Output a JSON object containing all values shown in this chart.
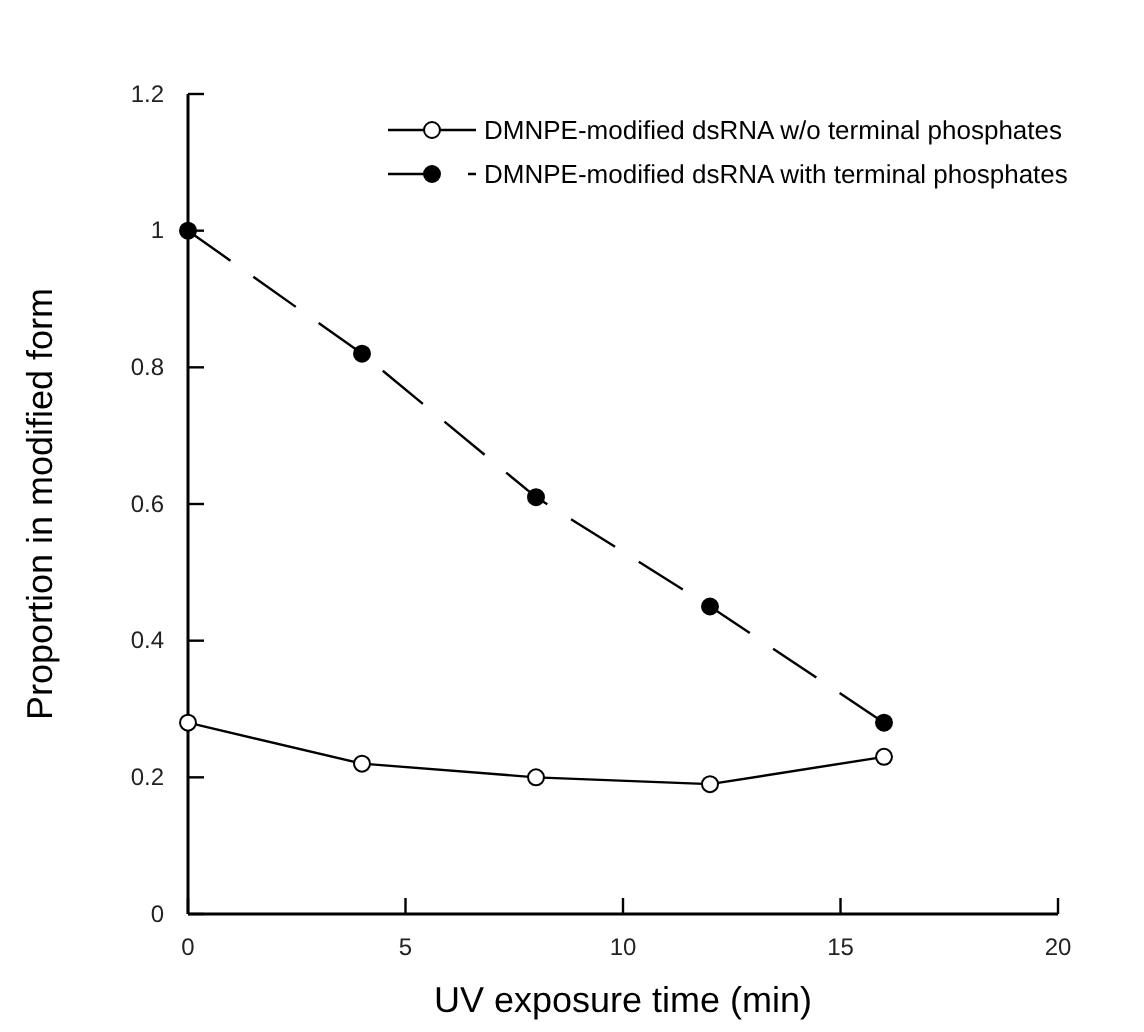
{
  "chart_data": {
    "type": "line",
    "xlabel": "UV exposure time (min)",
    "ylabel": "Proportion in modified form",
    "x": [
      0,
      4,
      8,
      12,
      16
    ],
    "series": [
      {
        "name": "DMNPE-modified dsRNA w/o terminal phosphates",
        "color": "#000000",
        "values": [
          0.28,
          0.22,
          0.2,
          0.19,
          0.23
        ],
        "marker": "circle",
        "line_style": "solid"
      },
      {
        "name": "DMNPE-modified dsRNA with terminal phosphates",
        "color": "#000000",
        "values": [
          1.0,
          0.82,
          0.61,
          0.45,
          0.28
        ],
        "marker": "circle",
        "line_style": "dashed"
      }
    ],
    "xlim": [
      0,
      20
    ],
    "xticks": [
      0,
      5,
      10,
      15,
      20
    ],
    "ylim": [
      0,
      1.2
    ],
    "yticks": [
      0,
      0.2,
      0.4,
      0.6,
      0.8,
      1,
      1.2
    ],
    "grid": false,
    "legend": "top right"
  }
}
